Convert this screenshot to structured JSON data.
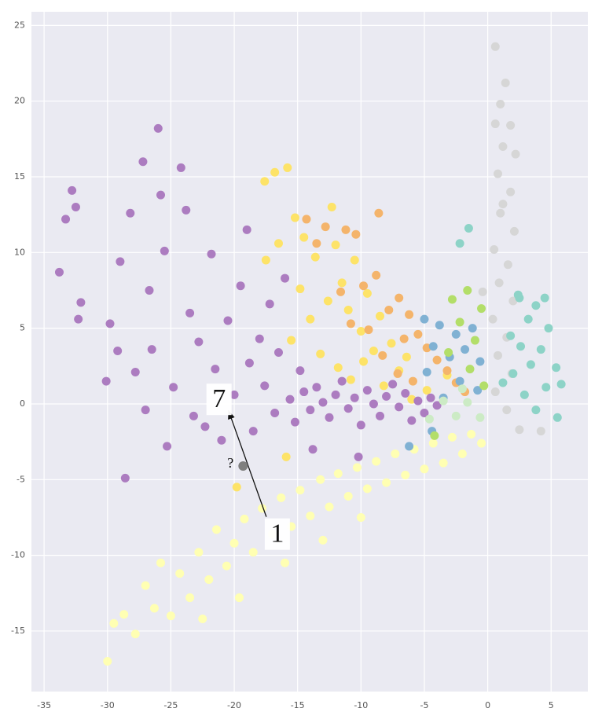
{
  "chart_data": {
    "type": "scatter",
    "xlim": [
      -36,
      7.9
    ],
    "ylim": [
      -19,
      25.9
    ],
    "xticks": [
      -35,
      -30,
      -25,
      -20,
      -15,
      -10,
      -5,
      0,
      5
    ],
    "yticks": [
      -15,
      -10,
      -5,
      0,
      5,
      10,
      15,
      20,
      25
    ],
    "grid": true,
    "background": "#eaeaf2",
    "series": [
      {
        "color": "#ffffb3",
        "x": [
          -30,
          -29.5,
          -28.7,
          -27.8,
          -27,
          -26.3,
          -25.8,
          -25,
          -24.3,
          -23.5,
          -22.8,
          -22,
          -21.4,
          -20.6,
          -20,
          -19.2,
          -18.5,
          -17.8,
          -17,
          -16.3,
          -15.5,
          -14.8,
          -14,
          -13.2,
          -12.5,
          -11.8,
          -11,
          -10.3,
          -9.5,
          -8.8,
          -8,
          -7.3,
          -6.5,
          -5.8,
          -5,
          -4.3,
          -3.5,
          -2.8,
          -2,
          -1.3,
          -0.5,
          -16,
          -13,
          -10,
          -22.5,
          -19.6
        ],
        "values": [
          -17,
          -14.5,
          -13.9,
          -15.2,
          -12,
          -13.5,
          -10.5,
          -14,
          -11.2,
          -12.8,
          -9.8,
          -11.6,
          -8.3,
          -10.7,
          -9.2,
          -7.6,
          -9.8,
          -6.9,
          -8.6,
          -6.2,
          -8.1,
          -5.7,
          -7.4,
          -5,
          -6.8,
          -4.6,
          -6.1,
          -4.2,
          -5.6,
          -3.8,
          -5.2,
          -3.3,
          -4.7,
          -3,
          -4.3,
          -2.6,
          -3.9,
          -2.2,
          -3.3,
          -2,
          -2.6,
          -10.5,
          -9,
          -7.5,
          -14.2,
          -12.8
        ]
      },
      {
        "color": "#fde368",
        "x": [
          -17.6,
          -16.8,
          -15.8,
          -15.2,
          -14.5,
          -13.6,
          -12.3,
          -12,
          -11.5,
          -11,
          -10.5,
          -10,
          -9.5,
          -9,
          -8.5,
          -14.8,
          -15.5,
          -14,
          -13.2,
          -12.6,
          -11.8,
          -10.8,
          -9.8,
          -8.2,
          -7.6,
          -7,
          -6.4,
          -16.5,
          -17.5,
          -15.9,
          -19.8,
          -6,
          -3.2,
          -4.8
        ],
        "values": [
          14.7,
          15.3,
          15.6,
          12.3,
          11,
          9.7,
          13,
          10.5,
          8,
          6.2,
          9.5,
          4.8,
          7.3,
          3.5,
          5.8,
          7.6,
          4.2,
          5.6,
          3.3,
          6.8,
          2.4,
          1.6,
          2.8,
          1.2,
          4,
          2.2,
          3.1,
          10.6,
          9.5,
          -3.5,
          -5.5,
          0.3,
          1.9,
          0.9
        ]
      },
      {
        "color": "#f4b46b",
        "x": [
          -14.3,
          -13.5,
          -12.8,
          -11.2,
          -10.4,
          -8.6,
          -9.8,
          -8.8,
          -7.8,
          -7,
          -6.2,
          -5.5,
          -4.8,
          -4,
          -3.2,
          -2.5,
          -1.8,
          -8.3,
          -7.1,
          -5.9,
          -9.4,
          -11.6,
          -10.8,
          -6.6
        ],
        "values": [
          12.2,
          10.6,
          11.7,
          11.5,
          11.2,
          12.6,
          7.8,
          8.5,
          6.2,
          7,
          5.9,
          4.6,
          3.7,
          2.9,
          2.2,
          1.4,
          0.8,
          3.2,
          2,
          1.5,
          4.9,
          7.4,
          5.3,
          4.3
        ]
      },
      {
        "color": "#ac7cc0",
        "x": [
          -33.8,
          -33.3,
          -32.8,
          -32.5,
          -32.3,
          -32.1,
          -30.1,
          -29.8,
          -29.2,
          -29,
          -28.6,
          -28.2,
          -27.8,
          -27.2,
          -27,
          -26.7,
          -26.5,
          -26,
          -25.8,
          -25.5,
          -25.3,
          -24.8,
          -24.2,
          -23.8,
          -23.5,
          -23.2,
          -22.8,
          -22.3,
          -21.8,
          -21.5,
          -21,
          -20.5,
          -20,
          -19.5,
          -19,
          -18.8,
          -18.5,
          -18,
          -17.6,
          -17.2,
          -16.8,
          -16.5,
          -16,
          -15.6,
          -15.2,
          -14.8,
          -14.5,
          -14,
          -13.5,
          -13,
          -12.5,
          -12,
          -11.5,
          -11,
          -10.5,
          -10,
          -9.5,
          -9,
          -8.5,
          -8,
          -7.5,
          -7,
          -6.5,
          -6,
          -5.5,
          -5,
          -4.5,
          -4,
          -10.2,
          -13.8
        ],
        "values": [
          8.7,
          12.2,
          14.1,
          13,
          5.6,
          6.7,
          1.5,
          5.3,
          3.5,
          9.4,
          -4.9,
          12.6,
          2.1,
          16,
          -0.4,
          7.5,
          3.6,
          18.2,
          13.8,
          10.1,
          -2.8,
          1.1,
          15.6,
          12.8,
          6,
          -0.8,
          4.1,
          -1.5,
          9.9,
          2.3,
          -2.4,
          5.5,
          0.6,
          7.8,
          11.5,
          2.7,
          -1.8,
          4.3,
          1.2,
          6.6,
          -0.6,
          3.4,
          8.3,
          0.3,
          -1.2,
          2.2,
          0.8,
          -0.4,
          1.1,
          0.1,
          -0.9,
          0.6,
          1.5,
          -0.3,
          0.4,
          -1.4,
          0.9,
          0,
          -0.8,
          0.5,
          1.3,
          -0.2,
          0.7,
          -1.1,
          0.2,
          -0.6,
          0.4,
          -0.1,
          -3.5,
          -3
        ]
      },
      {
        "color": "#80b1d3",
        "x": [
          -5,
          -3.8,
          -2.5,
          -1.2,
          -4.3,
          -3,
          -1.8,
          -0.6,
          -4.8,
          -2.2,
          -0.8,
          -3.5,
          -6.2,
          -4.4
        ],
        "values": [
          5.6,
          5.2,
          4.6,
          5,
          3.8,
          3.1,
          3.6,
          2.8,
          2.1,
          1.5,
          0.9,
          0.4,
          -2.8,
          -1.8
        ]
      },
      {
        "color": "#b3de69",
        "x": [
          -2.8,
          -1.6,
          -0.5,
          -2.2,
          -1,
          -0.3,
          -3.1,
          -1.4,
          -4.2
        ],
        "values": [
          6.9,
          7.5,
          6.3,
          5.4,
          4.2,
          1.2,
          3.4,
          2.3,
          -2.1
        ]
      },
      {
        "color": "#ccebc5",
        "x": [
          -3.5,
          -2.5,
          -1.6,
          -0.6,
          -4.6,
          -2
        ],
        "values": [
          0.2,
          -0.8,
          0.1,
          -0.9,
          -1,
          1
        ]
      },
      {
        "color": "#d6d6d6",
        "x": [
          0.6,
          1.4,
          0.6,
          1.8,
          1.2,
          2.2,
          0.8,
          1.8,
          1,
          2.1,
          0.5,
          1.6,
          0.9,
          2,
          0.4,
          1.5,
          0.8,
          1.9,
          0.6,
          1.5,
          2.5,
          4.2,
          -0.4,
          1.2,
          1
        ],
        "values": [
          23.6,
          21.2,
          18.5,
          18.4,
          17,
          16.5,
          15.2,
          14,
          12.6,
          11.4,
          10.2,
          9.2,
          8,
          6.8,
          5.6,
          4.4,
          3.2,
          2,
          0.8,
          -0.4,
          -1.7,
          -1.8,
          7.4,
          13.2,
          19.8
        ]
      },
      {
        "color": "#8dd3c7",
        "x": [
          4.5,
          3.8,
          2.5,
          3.2,
          4.8,
          1.8,
          2.6,
          4.2,
          5.4,
          5.8,
          3.4,
          2,
          4.6,
          1.2,
          2.9,
          5.5,
          3.8,
          -1.5,
          -2.2,
          2.4
        ],
        "values": [
          7,
          6.5,
          7,
          5.6,
          5,
          4.5,
          3.8,
          3.6,
          2.4,
          1.3,
          2.6,
          2,
          1.1,
          1.4,
          0.6,
          -0.9,
          -0.4,
          11.6,
          10.6,
          7.2
        ]
      }
    ],
    "query_point": {
      "x": -19.3,
      "y": -4.1,
      "color": "#7f7f7f"
    },
    "annotations": [
      {
        "text": "7",
        "x": -21.2,
        "y": 0.3
      },
      {
        "text": "1",
        "x": -16.6,
        "y": -8.6
      },
      {
        "text": "?",
        "x": -20.3,
        "y": -4.0
      }
    ]
  }
}
